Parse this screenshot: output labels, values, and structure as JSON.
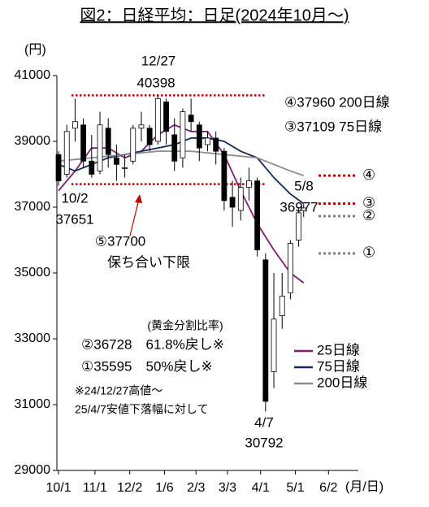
{
  "chart_data": {
    "type": "candlestick",
    "title": "図2：日経平均：日足(2024年10月～)",
    "y_unit": "(円)",
    "x_unit": "(月/日)",
    "ylim": [
      29000,
      41000
    ],
    "yticks": [
      29000,
      31000,
      33000,
      35000,
      37000,
      39000,
      41000
    ],
    "xlim": [
      -1,
      181
    ],
    "xticks": [
      {
        "value": 0,
        "label": "10/1"
      },
      {
        "value": 22,
        "label": "11/1"
      },
      {
        "value": 43,
        "label": "12/2"
      },
      {
        "value": 64,
        "label": "1/6"
      },
      {
        "value": 83,
        "label": "2/3"
      },
      {
        "value": 102,
        "label": "3/3"
      },
      {
        "value": 122,
        "label": "4/1"
      },
      {
        "value": 143,
        "label": "5/1"
      },
      {
        "value": 163,
        "label": "6/2"
      }
    ],
    "up_color": "#ffffff",
    "down_color": "#000000",
    "candles": [
      {
        "x": 0,
        "open": 38600,
        "high": 38700,
        "low": 37651,
        "close": 37800
      },
      {
        "x": 5,
        "open": 38000,
        "high": 39500,
        "low": 37900,
        "close": 39300
      },
      {
        "x": 10,
        "open": 39400,
        "high": 40300,
        "low": 39000,
        "close": 39600
      },
      {
        "x": 15,
        "open": 39500,
        "high": 39700,
        "low": 38200,
        "close": 38400
      },
      {
        "x": 20,
        "open": 38400,
        "high": 39200,
        "low": 37900,
        "close": 38000
      },
      {
        "x": 25,
        "open": 38100,
        "high": 39900,
        "low": 38000,
        "close": 39500
      },
      {
        "x": 30,
        "open": 39400,
        "high": 39700,
        "low": 38200,
        "close": 38600
      },
      {
        "x": 35,
        "open": 38500,
        "high": 38900,
        "low": 37800,
        "close": 38300
      },
      {
        "x": 40,
        "open": 38200,
        "high": 38600,
        "low": 37900,
        "close": 38200
      },
      {
        "x": 45,
        "open": 38400,
        "high": 39500,
        "low": 38300,
        "close": 39400
      },
      {
        "x": 50,
        "open": 39400,
        "high": 39900,
        "low": 39000,
        "close": 39500
      },
      {
        "x": 55,
        "open": 39400,
        "high": 39500,
        "low": 38700,
        "close": 38900
      },
      {
        "x": 60,
        "open": 39000,
        "high": 40398,
        "low": 38900,
        "close": 40300
      },
      {
        "x": 65,
        "open": 40200,
        "high": 40300,
        "low": 38900,
        "close": 39300
      },
      {
        "x": 70,
        "open": 39200,
        "high": 39700,
        "low": 38100,
        "close": 38400
      },
      {
        "x": 75,
        "open": 38500,
        "high": 40000,
        "low": 38200,
        "close": 39900
      },
      {
        "x": 80,
        "open": 39800,
        "high": 40300,
        "low": 39300,
        "close": 39600
      },
      {
        "x": 85,
        "open": 39500,
        "high": 39600,
        "low": 38400,
        "close": 38800
      },
      {
        "x": 90,
        "open": 38900,
        "high": 39300,
        "low": 38700,
        "close": 39100
      },
      {
        "x": 95,
        "open": 39100,
        "high": 39300,
        "low": 38300,
        "close": 38700
      },
      {
        "x": 100,
        "open": 38700,
        "high": 38800,
        "low": 36900,
        "close": 37200
      },
      {
        "x": 105,
        "open": 37300,
        "high": 37800,
        "low": 36400,
        "close": 37000
      },
      {
        "x": 110,
        "open": 36900,
        "high": 37900,
        "low": 36600,
        "close": 37600
      },
      {
        "x": 115,
        "open": 37600,
        "high": 38200,
        "low": 37200,
        "close": 37800
      },
      {
        "x": 120,
        "open": 37800,
        "high": 37900,
        "low": 35500,
        "close": 35700
      },
      {
        "x": 125,
        "open": 35400,
        "high": 35600,
        "low": 30792,
        "close": 31100
      },
      {
        "x": 130,
        "open": 32000,
        "high": 35000,
        "low": 31500,
        "close": 33600
      },
      {
        "x": 135,
        "open": 33700,
        "high": 35000,
        "low": 33300,
        "close": 34300
      },
      {
        "x": 140,
        "open": 34400,
        "high": 36000,
        "low": 34200,
        "close": 35900
      },
      {
        "x": 145,
        "open": 36000,
        "high": 37000,
        "low": 35800,
        "close": 36830
      },
      {
        "x": 148,
        "open": 36900,
        "high": 37100,
        "low": 36700,
        "close": 36977
      }
    ],
    "series": [
      {
        "name": "25日線",
        "color": "#7b1f6e",
        "x": [
          0,
          10,
          20,
          30,
          40,
          50,
          60,
          70,
          80,
          90,
          100,
          110,
          120,
          130,
          140,
          148
        ],
        "values": [
          37500,
          38100,
          38800,
          38800,
          38500,
          38700,
          39200,
          39500,
          39300,
          39300,
          38600,
          37500,
          36500,
          35700,
          35000,
          34700
        ]
      },
      {
        "name": "75日線",
        "color": "#14285a",
        "x": [
          0,
          10,
          20,
          30,
          40,
          50,
          60,
          70,
          80,
          90,
          100,
          110,
          120,
          130,
          140,
          148
        ],
        "values": [
          38300,
          38100,
          38300,
          38500,
          38600,
          38700,
          38800,
          38900,
          39100,
          39100,
          39000,
          38700,
          38500,
          37900,
          37400,
          37109
        ]
      },
      {
        "name": "200日線",
        "color": "#8c8c8c",
        "x": [
          0,
          20,
          40,
          60,
          80,
          100,
          120,
          140,
          148
        ],
        "values": [
          38400,
          38500,
          38600,
          38700,
          38700,
          38600,
          38500,
          38100,
          37960
        ]
      }
    ],
    "ref_lines": [
      40398,
      37700
    ],
    "ref_color": "#c00000",
    "levels": [
      {
        "value": 37960,
        "label": "④",
        "color": "#c00000"
      },
      {
        "value": 37109,
        "label": "③",
        "color": "#c00000"
      },
      {
        "value": 36728,
        "label": "②",
        "color": "#7f7f7f"
      },
      {
        "value": 35595,
        "label": "①",
        "color": "#7f7f7f"
      }
    ],
    "annotations": [
      "12/27",
      "40398",
      "10/2",
      "37651",
      "4/7",
      "30792",
      "5/8",
      "36977",
      "⑤37700",
      "保ち合い下限",
      "④37960 200日線",
      "③37109 75日線",
      "(黄金分割比率)",
      "②36728　61.8%戻し※",
      "①35595　50%戻し※",
      "※24/12/27高値～",
      "25/4/7安値下落幅に対して"
    ]
  }
}
